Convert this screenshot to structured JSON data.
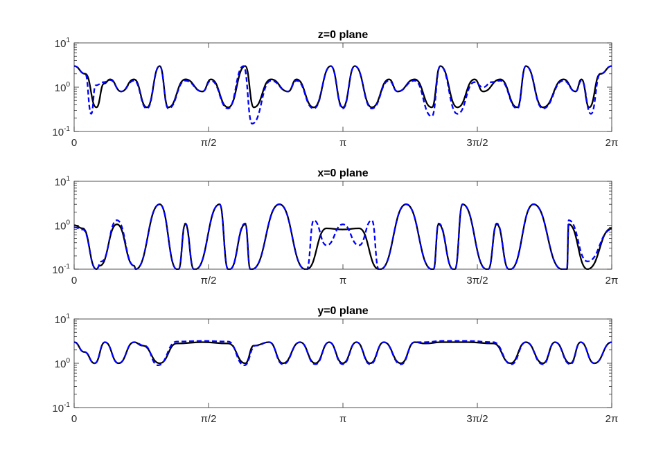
{
  "chart_data": [
    {
      "type": "line",
      "title": "z=0 plane",
      "yscale": "log",
      "ylim": [
        0.1,
        10
      ],
      "xlim": [
        0,
        6.283
      ],
      "xtick_labels": [
        "0",
        "π/2",
        "π",
        "3π/2",
        "2π"
      ],
      "ytick_labels": [
        {
          "base": "10",
          "exp": "-1"
        },
        {
          "base": "10",
          "exp": "0"
        },
        {
          "base": "10",
          "exp": "1"
        }
      ],
      "colors": {
        "series_solid": "#000000",
        "series_dashed": "#0000ff"
      },
      "series": [
        {
          "style": "solid",
          "x": [
            0,
            0.13,
            0.26,
            0.35,
            0.42,
            0.55,
            0.7,
            0.85,
            1.0,
            1.1,
            1.3,
            1.5,
            1.6,
            1.8,
            2.0,
            2.1,
            2.3,
            2.5,
            2.6,
            2.8,
            3.0,
            3.14,
            3.28,
            3.48,
            3.68,
            3.78,
            3.98,
            4.18,
            4.28,
            4.48,
            4.68,
            4.78,
            4.98,
            5.18,
            5.28,
            5.48,
            5.72,
            5.86,
            5.93,
            6.02,
            6.15,
            6.283
          ],
          "y": [
            3.0,
            2.0,
            0.35,
            1.2,
            1.5,
            0.8,
            1.5,
            0.35,
            3.0,
            0.35,
            1.5,
            0.8,
            1.5,
            0.35,
            3.0,
            0.35,
            1.5,
            0.8,
            1.5,
            0.35,
            3.0,
            0.35,
            3.0,
            0.35,
            1.5,
            0.8,
            1.5,
            0.35,
            3.0,
            0.35,
            1.5,
            0.8,
            1.5,
            0.35,
            3.0,
            0.35,
            1.5,
            0.8,
            1.5,
            0.35,
            2.0,
            3.0
          ]
        },
        {
          "style": "dashed",
          "x": [
            0,
            0.13,
            0.2,
            0.25,
            0.35,
            0.42,
            0.55,
            0.7,
            0.85,
            1.0,
            1.1,
            1.3,
            1.5,
            1.6,
            1.8,
            1.98,
            2.08,
            2.3,
            2.5,
            2.6,
            2.8,
            3.0,
            3.14,
            3.28,
            3.48,
            3.68,
            3.78,
            3.98,
            4.18,
            4.28,
            4.48,
            4.68,
            4.78,
            4.88,
            4.98,
            5.18,
            5.28,
            5.48,
            5.72,
            5.86,
            5.93,
            6.04,
            6.15,
            6.283
          ],
          "y": [
            3.0,
            2.0,
            0.25,
            1.1,
            1.3,
            1.45,
            0.8,
            1.4,
            0.33,
            3.0,
            0.33,
            1.4,
            0.8,
            1.4,
            0.33,
            3.0,
            0.15,
            1.4,
            0.8,
            1.4,
            0.33,
            3.0,
            0.33,
            3.0,
            0.33,
            1.4,
            0.8,
            1.4,
            0.22,
            3.0,
            0.25,
            1.3,
            1.0,
            1.3,
            1.4,
            0.33,
            3.0,
            0.33,
            1.4,
            0.8,
            1.4,
            0.25,
            2.0,
            3.0
          ]
        }
      ]
    },
    {
      "type": "line",
      "title": "x=0 plane",
      "yscale": "log",
      "ylim": [
        0.1,
        10
      ],
      "xlim": [
        0,
        6.283
      ],
      "xtick_labels": [
        "0",
        "π/2",
        "π",
        "3π/2",
        "2π"
      ],
      "ytick_labels": [
        {
          "base": "10",
          "exp": "-1"
        },
        {
          "base": "10",
          "exp": "0"
        },
        {
          "base": "10",
          "exp": "1"
        }
      ],
      "colors": {
        "series_solid": "#000000",
        "series_dashed": "#0000ff"
      },
      "series": [
        {
          "style": "solid",
          "x": [
            0,
            0.1,
            0.26,
            0.3,
            0.5,
            0.7,
            0.72,
            1.0,
            1.2,
            1.22,
            1.3,
            1.4,
            1.42,
            1.7,
            1.8,
            1.82,
            2.0,
            2.06,
            2.08,
            2.4,
            2.7,
            2.72,
            2.95,
            3.14,
            3.33,
            3.56,
            3.58,
            3.88,
            4.18,
            4.2,
            4.26,
            4.43,
            4.45,
            4.54,
            4.82,
            4.84,
            4.94,
            5.08,
            5.1,
            5.37,
            5.7,
            5.76,
            5.78,
            6.0,
            6.283
          ],
          "y": [
            1.0,
            0.85,
            0.1,
            0.12,
            1.05,
            0.12,
            0.1,
            3.0,
            0.1,
            0.1,
            1.05,
            0.1,
            0.1,
            3.0,
            0.1,
            0.1,
            1.05,
            0.1,
            0.1,
            3.0,
            0.1,
            0.1,
            0.85,
            0.8,
            0.85,
            0.1,
            0.1,
            3.0,
            0.1,
            0.1,
            1.05,
            0.1,
            0.1,
            3.0,
            0.1,
            0.1,
            1.05,
            0.1,
            0.1,
            3.0,
            0.1,
            0.1,
            1.05,
            0.1,
            0.85
          ]
        },
        {
          "style": "dashed",
          "x": [
            0,
            0.1,
            0.26,
            0.32,
            0.5,
            0.7,
            0.72,
            1.0,
            1.2,
            1.22,
            1.3,
            1.4,
            1.42,
            1.7,
            1.8,
            1.82,
            2.0,
            2.06,
            2.08,
            2.4,
            2.7,
            2.72,
            2.8,
            2.95,
            3.14,
            3.33,
            3.48,
            3.56,
            3.58,
            3.88,
            4.18,
            4.2,
            4.26,
            4.43,
            4.45,
            4.54,
            4.82,
            4.84,
            4.94,
            5.08,
            5.1,
            5.37,
            5.7,
            5.76,
            5.78,
            6.0,
            6.283
          ],
          "y": [
            0.9,
            0.8,
            0.1,
            0.15,
            1.3,
            0.12,
            0.1,
            3.0,
            0.1,
            0.1,
            1.1,
            0.1,
            0.1,
            3.0,
            0.1,
            0.1,
            1.1,
            0.1,
            0.1,
            3.0,
            0.1,
            0.1,
            1.3,
            0.35,
            1.05,
            0.35,
            1.3,
            0.1,
            0.1,
            3.0,
            0.1,
            0.1,
            1.1,
            0.1,
            0.1,
            3.0,
            0.1,
            0.1,
            1.1,
            0.1,
            0.1,
            3.0,
            0.1,
            0.1,
            1.3,
            0.15,
            0.8
          ]
        }
      ]
    },
    {
      "type": "line",
      "title": "y=0 plane",
      "yscale": "log",
      "ylim": [
        0.1,
        10
      ],
      "xlim": [
        0,
        6.283
      ],
      "xtick_labels": [
        "0",
        "π/2",
        "π",
        "3π/2",
        "2π"
      ],
      "ytick_labels": [
        {
          "base": "10",
          "exp": "-1"
        },
        {
          "base": "10",
          "exp": "0"
        },
        {
          "base": "10",
          "exp": "1"
        }
      ],
      "colors": {
        "series_solid": "#000000",
        "series_dashed": "#0000ff"
      },
      "series": [
        {
          "style": "solid",
          "x": [
            0,
            0.12,
            0.24,
            0.36,
            0.52,
            0.7,
            0.8,
            1.0,
            1.2,
            1.5,
            1.8,
            2.0,
            2.1,
            2.28,
            2.44,
            2.64,
            2.82,
            2.98,
            3.14,
            3.3,
            3.46,
            3.62,
            3.82,
            3.98,
            4.1,
            4.3,
            4.6,
            4.9,
            5.1,
            5.28,
            5.48,
            5.62,
            5.8,
            5.92,
            6.08,
            6.283
          ],
          "y": [
            3.0,
            1.8,
            1.0,
            3.0,
            1.0,
            3.0,
            2.5,
            1.0,
            2.8,
            3.0,
            2.8,
            1.0,
            2.5,
            3.0,
            1.0,
            3.0,
            1.0,
            3.0,
            1.0,
            3.0,
            1.0,
            3.0,
            1.0,
            3.0,
            2.8,
            3.0,
            3.0,
            2.8,
            1.0,
            3.0,
            1.0,
            3.0,
            1.0,
            3.0,
            1.0,
            3.0
          ]
        },
        {
          "style": "dashed",
          "x": [
            0,
            0.12,
            0.24,
            0.36,
            0.52,
            0.7,
            0.82,
            0.98,
            1.2,
            1.5,
            1.8,
            1.99,
            2.12,
            2.28,
            2.44,
            2.64,
            2.82,
            2.98,
            3.14,
            3.3,
            3.46,
            3.62,
            3.82,
            3.98,
            4.1,
            4.3,
            4.6,
            4.9,
            5.11,
            5.28,
            5.48,
            5.62,
            5.8,
            5.92,
            6.08,
            6.283
          ],
          "y": [
            3.0,
            1.8,
            1.0,
            3.0,
            1.0,
            3.0,
            2.5,
            0.9,
            3.1,
            3.2,
            3.1,
            0.9,
            2.5,
            3.0,
            0.95,
            3.0,
            0.95,
            3.0,
            0.95,
            3.0,
            0.95,
            3.0,
            0.95,
            3.0,
            3.0,
            3.2,
            3.2,
            3.0,
            0.95,
            3.0,
            0.95,
            3.0,
            0.95,
            3.0,
            1.0,
            3.0
          ]
        }
      ]
    }
  ]
}
